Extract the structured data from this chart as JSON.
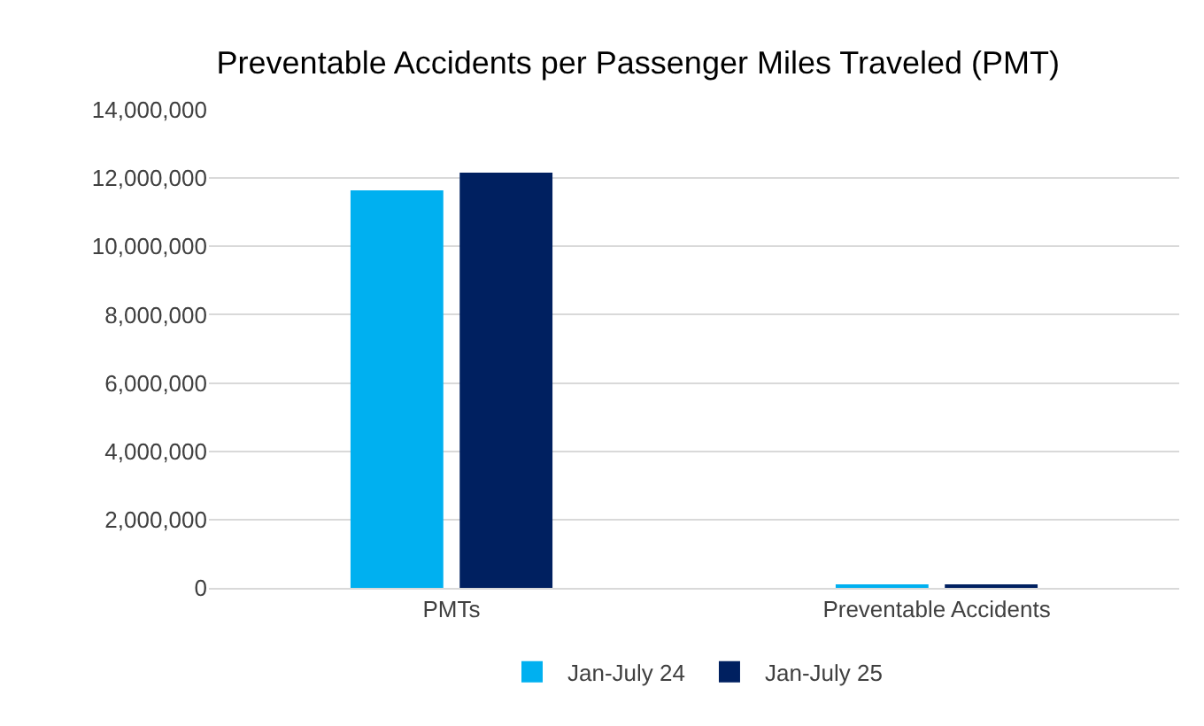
{
  "chart_data": {
    "type": "bar",
    "title": "Preventable Accidents per Passenger Miles Traveled (PMT)",
    "categories": [
      "PMTs",
      "Preventable Accidents"
    ],
    "series": [
      {
        "name": "Jan-July 24",
        "color": "#00b0f0",
        "values": [
          11640000,
          60000
        ]
      },
      {
        "name": "Jan-July 25",
        "color": "#002060",
        "values": [
          12160000,
          60000
        ]
      }
    ],
    "ylim": [
      0,
      14000000
    ],
    "yticks": [
      {
        "value": 0,
        "label": "0"
      },
      {
        "value": 2000000,
        "label": "2,000,000"
      },
      {
        "value": 4000000,
        "label": "4,000,000"
      },
      {
        "value": 6000000,
        "label": "6,000,000"
      },
      {
        "value": 8000000,
        "label": "8,000,000"
      },
      {
        "value": 10000000,
        "label": "10,000,000"
      },
      {
        "value": 12000000,
        "label": "12,000,000"
      },
      {
        "value": 14000000,
        "label": "14,000,000"
      }
    ],
    "grid": "y",
    "legend": "bottom"
  }
}
